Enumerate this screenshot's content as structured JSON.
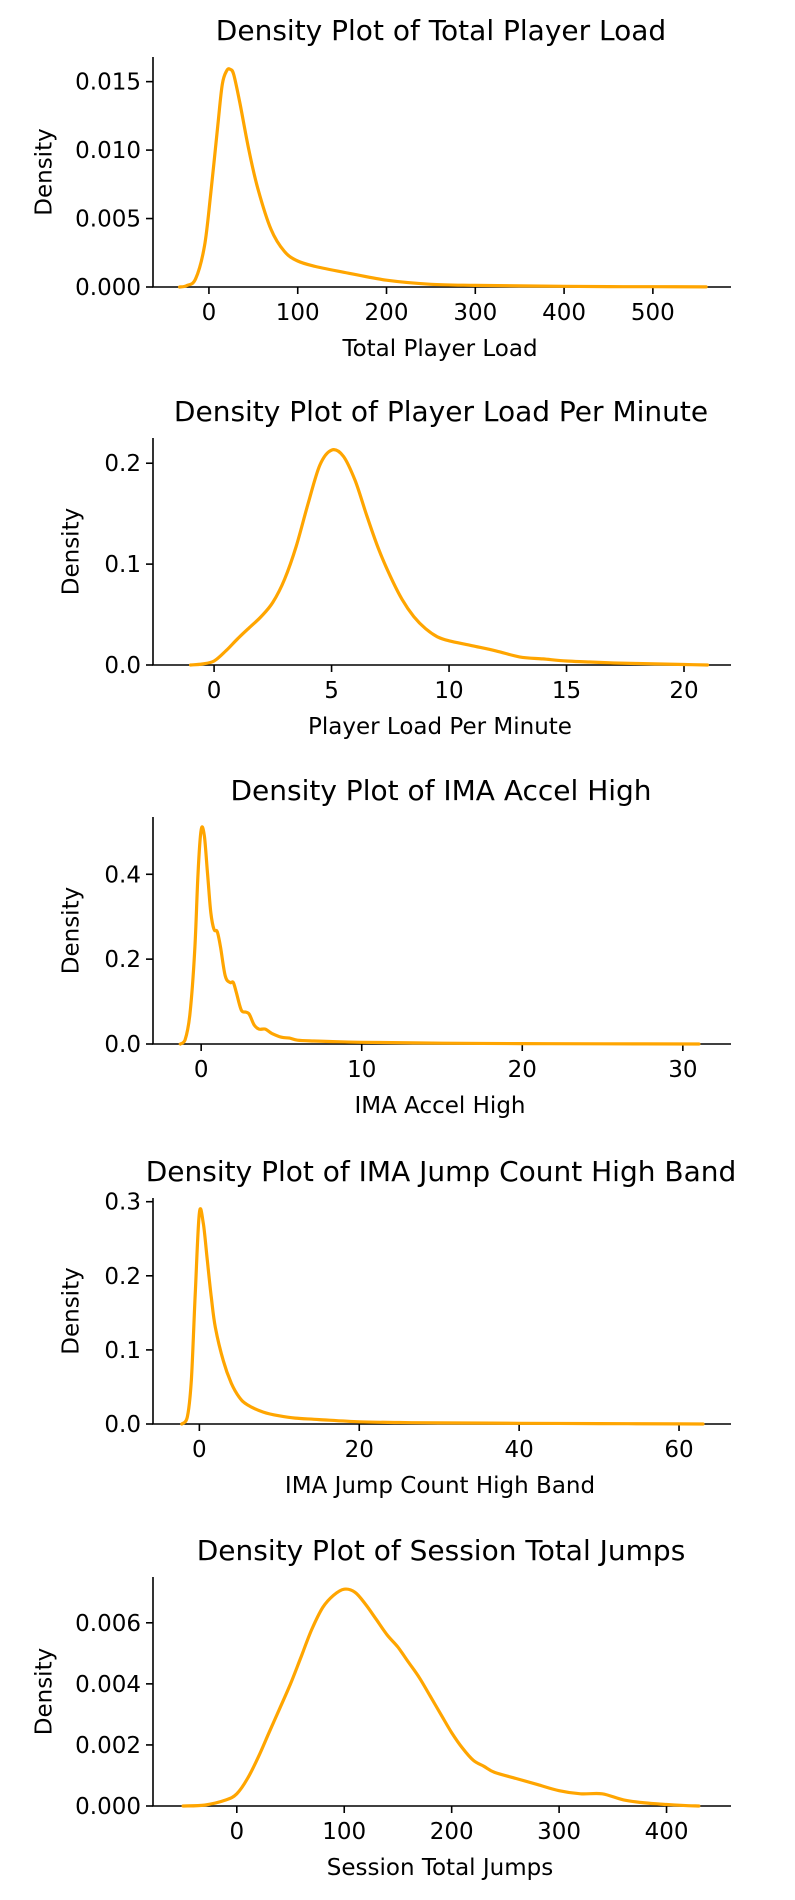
{
  "chart_data": [
    {
      "type": "line",
      "title": "Density Plot of Total Player Load",
      "xlabel": "Total Player Load",
      "ylabel": "Density",
      "xlim": [
        -63,
        588
      ],
      "ylim": [
        0,
        0.0168
      ],
      "xticks": [
        0,
        100,
        200,
        300,
        400,
        500
      ],
      "yticks": [
        0.0,
        0.005,
        0.01,
        0.015
      ],
      "xtick_labels": [
        "0",
        "100",
        "200",
        "300",
        "400",
        "500"
      ],
      "ytick_labels": [
        "0.000",
        "0.005",
        "0.010",
        "0.015"
      ],
      "color": "#FFA500",
      "grid": false,
      "x": [
        -33,
        -25,
        -15,
        -5,
        2,
        10,
        15,
        20,
        24,
        28,
        35,
        45,
        55,
        70,
        85,
        100,
        120,
        150,
        200,
        250,
        300,
        350,
        400,
        450,
        500,
        560
      ],
      "y": [
        0.0,
        0.0001,
        0.0006,
        0.003,
        0.0068,
        0.0118,
        0.0148,
        0.0158,
        0.0159,
        0.0155,
        0.0134,
        0.01,
        0.0072,
        0.0042,
        0.0026,
        0.0019,
        0.0015,
        0.0011,
        0.0005,
        0.0002,
        0.00012,
        8e-05,
        5e-05,
        3e-05,
        2e-05,
        1e-05
      ]
    },
    {
      "type": "line",
      "title": "Density Plot of Player Load Per Minute",
      "xlabel": "Player Load Per Minute",
      "ylabel": "Density",
      "xlim": [
        -2.6,
        22
      ],
      "ylim": [
        0,
        0.225
      ],
      "xticks": [
        0,
        5,
        10,
        15,
        20
      ],
      "yticks": [
        0.0,
        0.1,
        0.2
      ],
      "xtick_labels": [
        "0",
        "5",
        "10",
        "15",
        "20"
      ],
      "ytick_labels": [
        "0.0",
        "0.1",
        "0.2"
      ],
      "color": "#FFA500",
      "grid": false,
      "x": [
        -1,
        -0.5,
        0,
        0.5,
        1,
        1.5,
        2,
        2.5,
        3,
        3.5,
        4,
        4.5,
        5,
        5.5,
        6,
        6.5,
        7,
        7.5,
        8,
        8.5,
        9,
        9.5,
        10,
        11,
        12,
        13,
        14,
        15,
        16,
        17,
        18,
        19,
        20,
        21
      ],
      "y": [
        0.0,
        0.001,
        0.004,
        0.014,
        0.026,
        0.037,
        0.048,
        0.062,
        0.085,
        0.118,
        0.16,
        0.198,
        0.213,
        0.207,
        0.183,
        0.148,
        0.115,
        0.088,
        0.065,
        0.048,
        0.036,
        0.028,
        0.024,
        0.019,
        0.014,
        0.008,
        0.006,
        0.004,
        0.003,
        0.002,
        0.0015,
        0.001,
        0.0005,
        0.0
      ]
    },
    {
      "type": "line",
      "title": "Density Plot of IMA Accel High",
      "xlabel": "IMA Accel High",
      "ylabel": "Density",
      "xlim": [
        -3,
        33
      ],
      "ylim": [
        0,
        0.535
      ],
      "xticks": [
        0,
        10,
        20,
        30
      ],
      "yticks": [
        0.0,
        0.2,
        0.4
      ],
      "xtick_labels": [
        "0",
        "10",
        "20",
        "30"
      ],
      "ytick_labels": [
        "0.0",
        "0.2",
        "0.4"
      ],
      "color": "#FFA500",
      "grid": false,
      "x": [
        -1.3,
        -1.0,
        -0.7,
        -0.4,
        -0.2,
        0.0,
        0.2,
        0.4,
        0.6,
        0.8,
        1.0,
        1.2,
        1.5,
        1.8,
        2.0,
        2.2,
        2.5,
        2.8,
        3.0,
        3.3,
        3.6,
        4.0,
        4.4,
        5.0,
        5.5,
        6.0,
        7.0,
        8.0,
        10.0,
        15.0,
        20.0,
        25.0,
        31.0
      ],
      "y": [
        0.0,
        0.01,
        0.07,
        0.22,
        0.4,
        0.505,
        0.49,
        0.4,
        0.31,
        0.27,
        0.265,
        0.23,
        0.16,
        0.145,
        0.145,
        0.12,
        0.08,
        0.075,
        0.07,
        0.045,
        0.035,
        0.035,
        0.025,
        0.016,
        0.014,
        0.009,
        0.007,
        0.006,
        0.004,
        0.002,
        0.001,
        0.0005,
        0.0
      ]
    },
    {
      "type": "line",
      "title": "Density Plot of IMA Jump Count High Band",
      "xlabel": "IMA Jump Count High Band",
      "ylabel": "Density",
      "xlim": [
        -5.8,
        66.5
      ],
      "ylim": [
        0,
        0.305
      ],
      "xticks": [
        0,
        20,
        40,
        60
      ],
      "yticks": [
        0.0,
        0.1,
        0.2,
        0.3
      ],
      "xtick_labels": [
        "0",
        "20",
        "40",
        "60"
      ],
      "ytick_labels": [
        "0.0",
        "0.1",
        "0.2",
        "0.3"
      ],
      "color": "#FFA500",
      "grid": false,
      "x": [
        -2.2,
        -1.5,
        -1.0,
        -0.5,
        0.0,
        0.5,
        1.0,
        1.5,
        2.0,
        3.0,
        4.0,
        5.0,
        6.0,
        8.0,
        10.0,
        12.0,
        15.0,
        20.0,
        25.0,
        30.0,
        40.0,
        50.0,
        60.0,
        63.0
      ],
      "y": [
        0.0,
        0.01,
        0.06,
        0.18,
        0.285,
        0.27,
        0.22,
        0.17,
        0.13,
        0.085,
        0.055,
        0.036,
        0.026,
        0.016,
        0.011,
        0.008,
        0.006,
        0.003,
        0.002,
        0.0015,
        0.001,
        0.0005,
        0.0002,
        0.0
      ]
    },
    {
      "type": "line",
      "title": "Density Plot of Session Total Jumps",
      "xlabel": "Session Total Jumps",
      "ylabel": "Density",
      "xlim": [
        -78,
        460
      ],
      "ylim": [
        0,
        0.0075
      ],
      "xticks": [
        0,
        100,
        200,
        300,
        400
      ],
      "yticks": [
        0.0,
        0.002,
        0.004,
        0.006
      ],
      "xtick_labels": [
        "0",
        "100",
        "200",
        "300",
        "400"
      ],
      "ytick_labels": [
        "0.000",
        "0.002",
        "0.004",
        "0.006"
      ],
      "color": "#FFA500",
      "grid": false,
      "x": [
        -50,
        -30,
        -10,
        0,
        10,
        20,
        30,
        40,
        50,
        60,
        70,
        80,
        90,
        100,
        110,
        120,
        130,
        140,
        150,
        160,
        170,
        180,
        190,
        200,
        210,
        220,
        230,
        240,
        260,
        280,
        300,
        320,
        340,
        360,
        380,
        400,
        420,
        430
      ],
      "y": [
        0.0,
        3e-05,
        0.0002,
        0.0004,
        0.0009,
        0.0016,
        0.0024,
        0.0032,
        0.004,
        0.0049,
        0.0058,
        0.0065,
        0.0069,
        0.0071,
        0.007,
        0.0066,
        0.0061,
        0.0056,
        0.0052,
        0.0047,
        0.0042,
        0.0036,
        0.003,
        0.0024,
        0.0019,
        0.0015,
        0.0013,
        0.0011,
        0.0009,
        0.0007,
        0.0005,
        0.0004,
        0.0004,
        0.0002,
        0.0001,
        5e-05,
        1e-05,
        0.0
      ]
    }
  ]
}
